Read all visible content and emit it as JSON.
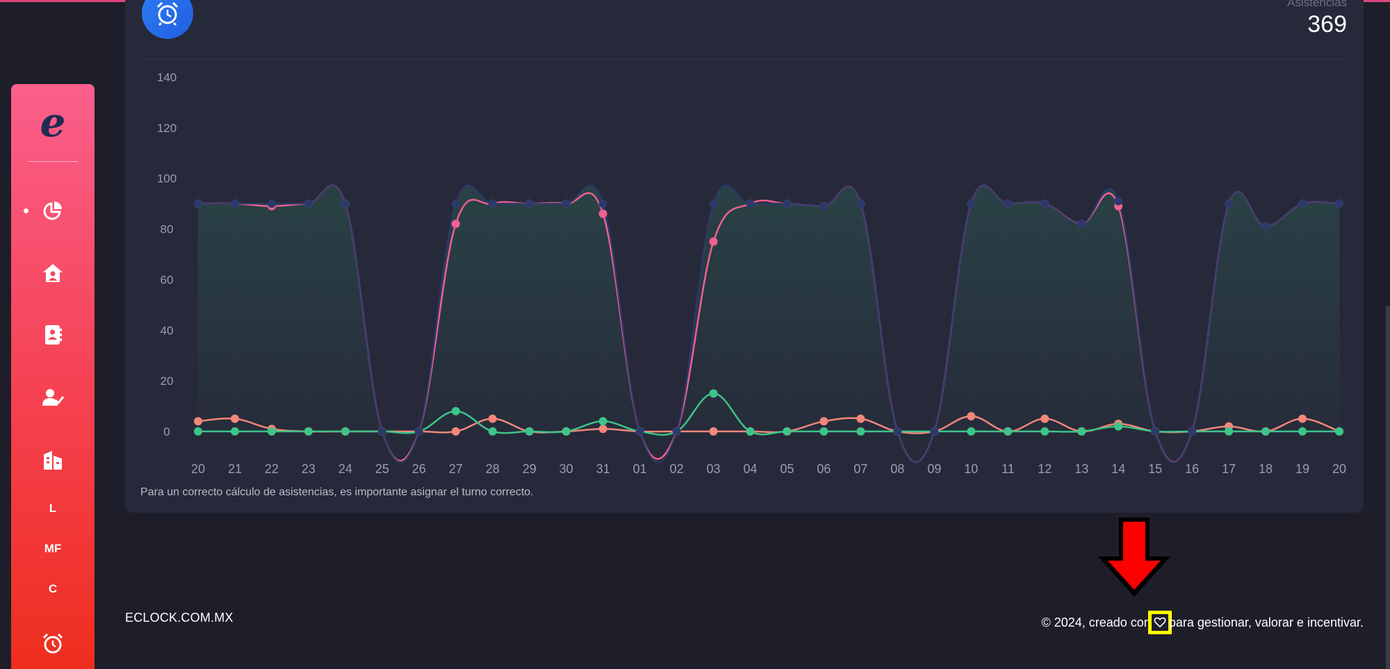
{
  "card": {
    "label": "Asistencias",
    "value": "369",
    "note": "Para un correcto cálculo de asistencias, es importante asignar el turno correcto."
  },
  "sidebar": {
    "logo": "e",
    "items": [
      {
        "icon": "pie-chart-icon",
        "active": true
      },
      {
        "icon": "home-icon"
      },
      {
        "icon": "contacts-book-icon"
      },
      {
        "icon": "user-check-icon"
      },
      {
        "icon": "building-icon"
      }
    ],
    "letters": [
      "L",
      "MF",
      "C"
    ],
    "bottom_icon": "alarm-clock-icon"
  },
  "footer": {
    "left": "ECLOCK.COM.MX",
    "right_before": "© 2024, creado con",
    "right_after": "para gestionar, valorar e incentivar.",
    "heart_icon": "heart-icon"
  },
  "annotation": {
    "arrow_color": "#ff0000",
    "highlight_color": "#ffff00"
  },
  "colors": {
    "accent_pink": "#f05d8e",
    "navy": "#2b3a6b",
    "green": "#3ec48a",
    "salmon": "#f2877a"
  },
  "chart_data": {
    "type": "line",
    "y_ticks": [
      "140",
      "120",
      "100",
      "80",
      "60",
      "40",
      "20",
      "0"
    ],
    "ylim": [
      0,
      140
    ],
    "categories": [
      "20",
      "21",
      "22",
      "23",
      "24",
      "25",
      "26",
      "27",
      "28",
      "29",
      "30",
      "31",
      "01",
      "02",
      "03",
      "04",
      "05",
      "06",
      "07",
      "08",
      "09",
      "10",
      "11",
      "12",
      "13",
      "14",
      "15",
      "16",
      "17",
      "18",
      "19",
      "20"
    ],
    "series": [
      {
        "color": "#2c3a6b",
        "values": [
          90,
          90,
          90,
          90,
          90,
          0,
          0,
          90,
          90,
          90,
          90,
          90,
          0,
          0,
          90,
          90,
          90,
          89,
          90,
          0,
          0,
          90,
          90,
          90,
          82,
          91,
          0,
          0,
          90,
          81,
          90,
          90
        ]
      },
      {
        "color": "#f0608f",
        "values": [
          90,
          90,
          89,
          90,
          90,
          0,
          0,
          82,
          90,
          90,
          90,
          86,
          0,
          0,
          75,
          90,
          90,
          89,
          90,
          0,
          0,
          90,
          90,
          90,
          82,
          89,
          0,
          0,
          90,
          81,
          90,
          90
        ]
      },
      {
        "color": "#f2877a",
        "values": [
          4,
          5,
          1,
          0,
          0,
          0,
          0,
          0,
          5,
          0,
          0,
          1,
          0,
          0,
          0,
          0,
          0,
          4,
          5,
          0,
          0,
          6,
          0,
          5,
          0,
          3,
          0,
          0,
          2,
          0,
          5,
          0
        ]
      },
      {
        "color": "#3ec48a",
        "values": [
          0,
          0,
          0,
          0,
          0,
          0,
          0,
          8,
          0,
          0,
          0,
          4,
          0,
          0,
          15,
          0,
          0,
          0,
          0,
          0,
          0,
          0,
          0,
          0,
          0,
          2,
          0,
          0,
          0,
          0,
          0,
          0
        ]
      }
    ],
    "grid": true
  }
}
